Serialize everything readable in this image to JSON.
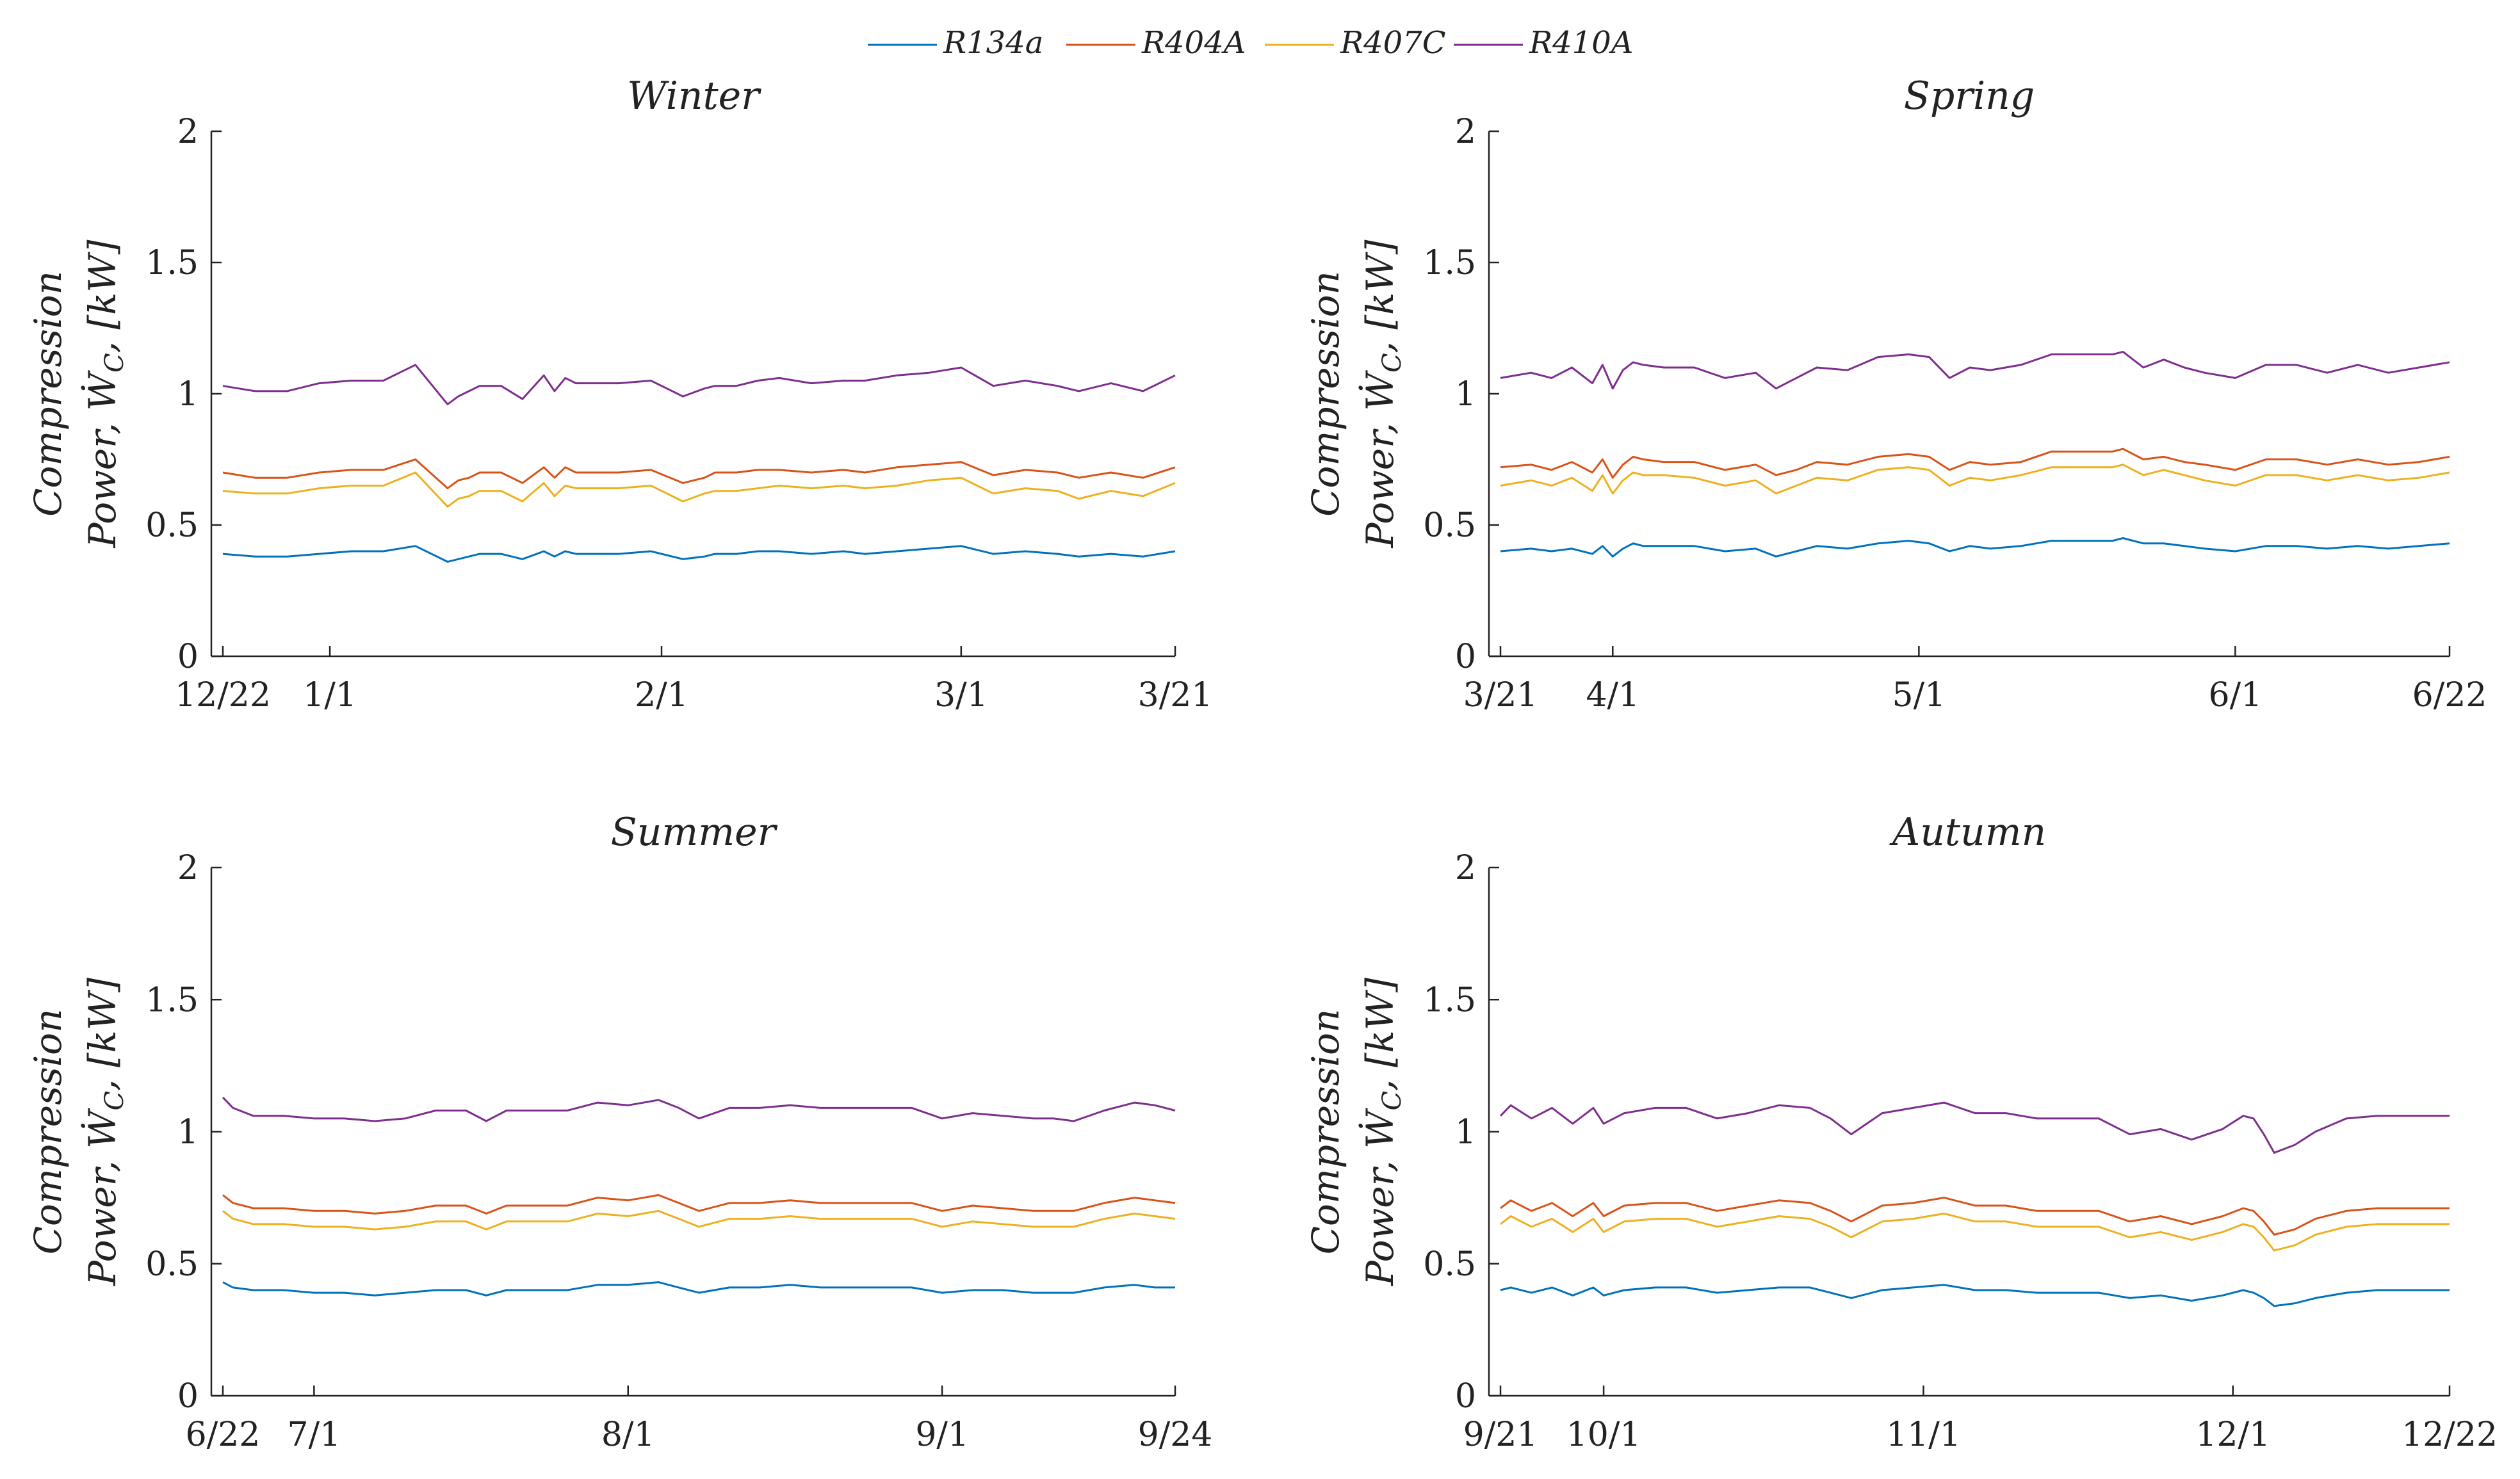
{
  "legend": [
    {
      "name": "R134a",
      "color": "#0072BD"
    },
    {
      "name": "R404A",
      "color": "#D95319"
    },
    {
      "name": "R407C",
      "color": "#EDB120"
    },
    {
      "name": "R410A",
      "color": "#7E2F8E"
    }
  ],
  "ylabel_line1": "Compression",
  "ylabel_line2_prefix": "Power, ",
  "ylabel_symbol": "Ẇ",
  "ylabel_sub": "C",
  "ylabel_suffix": ", [kW]",
  "chart_data": [
    {
      "type": "line",
      "title": "Winter",
      "ylim": [
        0,
        2
      ],
      "yticks": [
        0,
        0.5,
        1,
        1.5,
        2
      ],
      "ytick_labels": [
        "0",
        "0.5",
        "1",
        "1.5",
        "2"
      ],
      "xlim": [
        0,
        89
      ],
      "xticks": [
        0,
        10,
        41,
        69,
        89
      ],
      "xtick_labels": [
        "12/22",
        "1/1",
        "2/1",
        "3/1",
        "3/21"
      ],
      "x": [
        0,
        3,
        6,
        9,
        12,
        15,
        18,
        21,
        22,
        23,
        24,
        26,
        28,
        30,
        31,
        32,
        33,
        34,
        35,
        37,
        40,
        43,
        45,
        46,
        48,
        50,
        52,
        55,
        58,
        60,
        63,
        66,
        69,
        72,
        75,
        78,
        80,
        83,
        86,
        89
      ],
      "series": [
        {
          "name": "R134a",
          "values": [
            0.39,
            0.38,
            0.38,
            0.39,
            0.4,
            0.4,
            0.42,
            0.36,
            0.37,
            0.38,
            0.39,
            0.39,
            0.37,
            0.4,
            0.38,
            0.4,
            0.39,
            0.39,
            0.39,
            0.39,
            0.4,
            0.37,
            0.38,
            0.39,
            0.39,
            0.4,
            0.4,
            0.39,
            0.4,
            0.39,
            0.4,
            0.41,
            0.42,
            0.39,
            0.4,
            0.39,
            0.38,
            0.39,
            0.38,
            0.4
          ]
        },
        {
          "name": "R404A",
          "values": [
            0.7,
            0.68,
            0.68,
            0.7,
            0.71,
            0.71,
            0.75,
            0.64,
            0.67,
            0.68,
            0.7,
            0.7,
            0.66,
            0.72,
            0.68,
            0.72,
            0.7,
            0.7,
            0.7,
            0.7,
            0.71,
            0.66,
            0.68,
            0.7,
            0.7,
            0.71,
            0.71,
            0.7,
            0.71,
            0.7,
            0.72,
            0.73,
            0.74,
            0.69,
            0.71,
            0.7,
            0.68,
            0.7,
            0.68,
            0.72
          ]
        },
        {
          "name": "R407C",
          "values": [
            0.63,
            0.62,
            0.62,
            0.64,
            0.65,
            0.65,
            0.7,
            0.57,
            0.6,
            0.61,
            0.63,
            0.63,
            0.59,
            0.66,
            0.61,
            0.65,
            0.64,
            0.64,
            0.64,
            0.64,
            0.65,
            0.59,
            0.62,
            0.63,
            0.63,
            0.64,
            0.65,
            0.64,
            0.65,
            0.64,
            0.65,
            0.67,
            0.68,
            0.62,
            0.64,
            0.63,
            0.6,
            0.63,
            0.61,
            0.66
          ]
        },
        {
          "name": "R410A",
          "values": [
            1.03,
            1.01,
            1.01,
            1.04,
            1.05,
            1.05,
            1.11,
            0.96,
            0.99,
            1.01,
            1.03,
            1.03,
            0.98,
            1.07,
            1.01,
            1.06,
            1.04,
            1.04,
            1.04,
            1.04,
            1.05,
            0.99,
            1.02,
            1.03,
            1.03,
            1.05,
            1.06,
            1.04,
            1.05,
            1.05,
            1.07,
            1.08,
            1.1,
            1.03,
            1.05,
            1.03,
            1.01,
            1.04,
            1.01,
            1.07
          ]
        }
      ]
    },
    {
      "type": "line",
      "title": "Spring",
      "ylim": [
        0,
        2
      ],
      "yticks": [
        0,
        0.5,
        1,
        1.5,
        2
      ],
      "ytick_labels": [
        "0",
        "0.5",
        "1",
        "1.5",
        "2"
      ],
      "xlim": [
        0,
        93
      ],
      "xticks": [
        0,
        11,
        41,
        72,
        93
      ],
      "xtick_labels": [
        "3/21",
        "4/1",
        "5/1",
        "6/1",
        "6/22"
      ],
      "x": [
        0,
        3,
        5,
        7,
        9,
        10,
        11,
        12,
        13,
        14,
        16,
        19,
        22,
        25,
        27,
        29,
        31,
        34,
        37,
        40,
        42,
        44,
        46,
        48,
        51,
        54,
        57,
        60,
        61,
        63,
        65,
        67,
        69,
        72,
        75,
        78,
        81,
        84,
        87,
        90,
        93
      ],
      "series": [
        {
          "name": "R134a",
          "values": [
            0.4,
            0.41,
            0.4,
            0.41,
            0.39,
            0.42,
            0.38,
            0.41,
            0.43,
            0.42,
            0.42,
            0.42,
            0.4,
            0.41,
            0.38,
            0.4,
            0.42,
            0.41,
            0.43,
            0.44,
            0.43,
            0.4,
            0.42,
            0.41,
            0.42,
            0.44,
            0.44,
            0.44,
            0.45,
            0.43,
            0.43,
            0.42,
            0.41,
            0.4,
            0.42,
            0.42,
            0.41,
            0.42,
            0.41,
            0.42,
            0.43
          ]
        },
        {
          "name": "R404A",
          "values": [
            0.72,
            0.73,
            0.71,
            0.74,
            0.7,
            0.75,
            0.68,
            0.73,
            0.76,
            0.75,
            0.74,
            0.74,
            0.71,
            0.73,
            0.69,
            0.71,
            0.74,
            0.73,
            0.76,
            0.77,
            0.76,
            0.71,
            0.74,
            0.73,
            0.74,
            0.78,
            0.78,
            0.78,
            0.79,
            0.75,
            0.76,
            0.74,
            0.73,
            0.71,
            0.75,
            0.75,
            0.73,
            0.75,
            0.73,
            0.74,
            0.76
          ]
        },
        {
          "name": "R407C",
          "values": [
            0.65,
            0.67,
            0.65,
            0.68,
            0.63,
            0.69,
            0.62,
            0.67,
            0.7,
            0.69,
            0.69,
            0.68,
            0.65,
            0.67,
            0.62,
            0.65,
            0.68,
            0.67,
            0.71,
            0.72,
            0.71,
            0.65,
            0.68,
            0.67,
            0.69,
            0.72,
            0.72,
            0.72,
            0.73,
            0.69,
            0.71,
            0.69,
            0.67,
            0.65,
            0.69,
            0.69,
            0.67,
            0.69,
            0.67,
            0.68,
            0.7
          ]
        },
        {
          "name": "R410A",
          "values": [
            1.06,
            1.08,
            1.06,
            1.1,
            1.04,
            1.11,
            1.02,
            1.09,
            1.12,
            1.11,
            1.1,
            1.1,
            1.06,
            1.08,
            1.02,
            1.06,
            1.1,
            1.09,
            1.14,
            1.15,
            1.14,
            1.06,
            1.1,
            1.09,
            1.11,
            1.15,
            1.15,
            1.15,
            1.16,
            1.1,
            1.13,
            1.1,
            1.08,
            1.06,
            1.11,
            1.11,
            1.08,
            1.11,
            1.08,
            1.1,
            1.12
          ]
        }
      ]
    },
    {
      "type": "line",
      "title": "Summer",
      "ylim": [
        0,
        2
      ],
      "yticks": [
        0,
        0.5,
        1,
        1.5,
        2
      ],
      "ytick_labels": [
        "0",
        "0.5",
        "1",
        "1.5",
        "2"
      ],
      "xlim": [
        0,
        94
      ],
      "xticks": [
        0,
        9,
        40,
        71,
        94
      ],
      "xtick_labels": [
        "6/22",
        "7/1",
        "8/1",
        "9/1",
        "9/24"
      ],
      "x": [
        0,
        1,
        3,
        6,
        9,
        12,
        15,
        18,
        21,
        24,
        26,
        28,
        31,
        34,
        37,
        40,
        43,
        45,
        47,
        50,
        53,
        56,
        59,
        62,
        65,
        68,
        71,
        74,
        77,
        80,
        82,
        84,
        87,
        90,
        92,
        94
      ],
      "series": [
        {
          "name": "R134a",
          "values": [
            0.43,
            0.41,
            0.4,
            0.4,
            0.39,
            0.39,
            0.38,
            0.39,
            0.4,
            0.4,
            0.38,
            0.4,
            0.4,
            0.4,
            0.42,
            0.42,
            0.43,
            0.41,
            0.39,
            0.41,
            0.41,
            0.42,
            0.41,
            0.41,
            0.41,
            0.41,
            0.39,
            0.4,
            0.4,
            0.39,
            0.39,
            0.39,
            0.41,
            0.42,
            0.41,
            0.41
          ]
        },
        {
          "name": "R404A",
          "values": [
            0.76,
            0.73,
            0.71,
            0.71,
            0.7,
            0.7,
            0.69,
            0.7,
            0.72,
            0.72,
            0.69,
            0.72,
            0.72,
            0.72,
            0.75,
            0.74,
            0.76,
            0.73,
            0.7,
            0.73,
            0.73,
            0.74,
            0.73,
            0.73,
            0.73,
            0.73,
            0.7,
            0.72,
            0.71,
            0.7,
            0.7,
            0.7,
            0.73,
            0.75,
            0.74,
            0.73
          ]
        },
        {
          "name": "R407C",
          "values": [
            0.7,
            0.67,
            0.65,
            0.65,
            0.64,
            0.64,
            0.63,
            0.64,
            0.66,
            0.66,
            0.63,
            0.66,
            0.66,
            0.66,
            0.69,
            0.68,
            0.7,
            0.67,
            0.64,
            0.67,
            0.67,
            0.68,
            0.67,
            0.67,
            0.67,
            0.67,
            0.64,
            0.66,
            0.65,
            0.64,
            0.64,
            0.64,
            0.67,
            0.69,
            0.68,
            0.67
          ]
        },
        {
          "name": "R410A",
          "values": [
            1.13,
            1.09,
            1.06,
            1.06,
            1.05,
            1.05,
            1.04,
            1.05,
            1.08,
            1.08,
            1.04,
            1.08,
            1.08,
            1.08,
            1.11,
            1.1,
            1.12,
            1.09,
            1.05,
            1.09,
            1.09,
            1.1,
            1.09,
            1.09,
            1.09,
            1.09,
            1.05,
            1.07,
            1.06,
            1.05,
            1.05,
            1.04,
            1.08,
            1.11,
            1.1,
            1.08
          ]
        }
      ]
    },
    {
      "type": "line",
      "title": "Autumn",
      "ylim": [
        0,
        2
      ],
      "yticks": [
        0,
        0.5,
        1,
        1.5,
        2
      ],
      "ytick_labels": [
        "0",
        "0.5",
        "1",
        "1.5",
        "2"
      ],
      "xlim": [
        0,
        92
      ],
      "xticks": [
        0,
        10,
        41,
        71,
        92
      ],
      "xtick_labels": [
        "9/21",
        "10/1",
        "11/1",
        "12/1",
        "12/22"
      ],
      "x": [
        0,
        1,
        3,
        5,
        7,
        9,
        10,
        12,
        15,
        18,
        21,
        24,
        27,
        30,
        32,
        34,
        37,
        40,
        43,
        46,
        49,
        52,
        55,
        58,
        61,
        64,
        67,
        70,
        72,
        73,
        74,
        75,
        77,
        79,
        82,
        85,
        88,
        92
      ],
      "series": [
        {
          "name": "R134a",
          "values": [
            0.4,
            0.41,
            0.39,
            0.41,
            0.38,
            0.41,
            0.38,
            0.4,
            0.41,
            0.41,
            0.39,
            0.4,
            0.41,
            0.41,
            0.39,
            0.37,
            0.4,
            0.41,
            0.42,
            0.4,
            0.4,
            0.39,
            0.39,
            0.39,
            0.37,
            0.38,
            0.36,
            0.38,
            0.4,
            0.39,
            0.37,
            0.34,
            0.35,
            0.37,
            0.39,
            0.4,
            0.4,
            0.4
          ]
        },
        {
          "name": "R404A",
          "values": [
            0.71,
            0.74,
            0.7,
            0.73,
            0.68,
            0.73,
            0.68,
            0.72,
            0.73,
            0.73,
            0.7,
            0.72,
            0.74,
            0.73,
            0.7,
            0.66,
            0.72,
            0.73,
            0.75,
            0.72,
            0.72,
            0.7,
            0.7,
            0.7,
            0.66,
            0.68,
            0.65,
            0.68,
            0.71,
            0.7,
            0.66,
            0.61,
            0.63,
            0.67,
            0.7,
            0.71,
            0.71,
            0.71
          ]
        },
        {
          "name": "R407C",
          "values": [
            0.65,
            0.68,
            0.64,
            0.67,
            0.62,
            0.67,
            0.62,
            0.66,
            0.67,
            0.67,
            0.64,
            0.66,
            0.68,
            0.67,
            0.64,
            0.6,
            0.66,
            0.67,
            0.69,
            0.66,
            0.66,
            0.64,
            0.64,
            0.64,
            0.6,
            0.62,
            0.59,
            0.62,
            0.65,
            0.64,
            0.6,
            0.55,
            0.57,
            0.61,
            0.64,
            0.65,
            0.65,
            0.65
          ]
        },
        {
          "name": "R410A",
          "values": [
            1.06,
            1.1,
            1.05,
            1.09,
            1.03,
            1.09,
            1.03,
            1.07,
            1.09,
            1.09,
            1.05,
            1.07,
            1.1,
            1.09,
            1.05,
            0.99,
            1.07,
            1.09,
            1.11,
            1.07,
            1.07,
            1.05,
            1.05,
            1.05,
            0.99,
            1.01,
            0.97,
            1.01,
            1.06,
            1.05,
            0.99,
            0.92,
            0.95,
            1.0,
            1.05,
            1.06,
            1.06,
            1.06
          ]
        }
      ]
    }
  ]
}
